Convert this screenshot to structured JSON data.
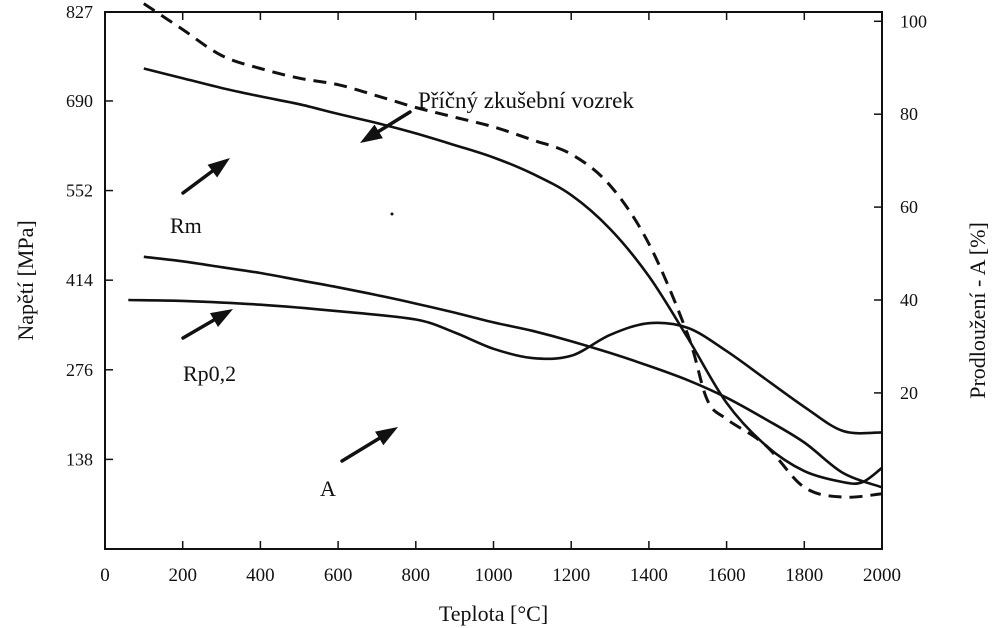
{
  "chart_data": {
    "type": "line",
    "xlabel": "Teplota [°C]",
    "ylabel": "Napětí [MPa]",
    "y2label": "Prodloužení - A [%]",
    "xlim": [
      0,
      2000
    ],
    "ylim": [
      0,
      827
    ],
    "y2lim": [
      -13.6,
      102
    ],
    "x_ticks": [
      0,
      200,
      400,
      600,
      800,
      1000,
      1200,
      1400,
      1600,
      1800,
      2000
    ],
    "y_ticks": [
      138,
      276,
      414,
      552,
      690,
      827
    ],
    "y2_ticks": [
      20,
      40,
      60,
      80,
      100
    ],
    "grid": false,
    "series": [
      {
        "name": "Příčný zkušební vozrek",
        "axis": "left",
        "style": "dashed",
        "x": [
          100,
          200,
          300,
          400,
          500,
          600,
          700,
          800,
          900,
          1000,
          1100,
          1200,
          1300,
          1400,
          1500,
          1550,
          1600,
          1700,
          1800,
          1900,
          2000
        ],
        "y": [
          840,
          800,
          760,
          740,
          725,
          715,
          698,
          680,
          665,
          650,
          630,
          608,
          560,
          470,
          330,
          230,
          200,
          160,
          95,
          80,
          85
        ]
      },
      {
        "name": "Rm",
        "axis": "left",
        "style": "solid",
        "x": [
          100,
          200,
          300,
          400,
          500,
          600,
          700,
          800,
          900,
          1000,
          1100,
          1200,
          1300,
          1400,
          1500,
          1600,
          1700,
          1800,
          1900,
          1950,
          2000
        ],
        "y": [
          740,
          725,
          710,
          697,
          685,
          670,
          656,
          640,
          622,
          603,
          578,
          545,
          493,
          420,
          325,
          225,
          160,
          120,
          103,
          103,
          125
        ]
      },
      {
        "name": "Rp0,2",
        "axis": "left",
        "style": "solid",
        "x": [
          100,
          200,
          300,
          400,
          500,
          600,
          700,
          800,
          900,
          1000,
          1100,
          1200,
          1300,
          1400,
          1500,
          1600,
          1700,
          1800,
          1900,
          2000
        ],
        "y": [
          450,
          443,
          434,
          425,
          414,
          403,
          391,
          378,
          364,
          349,
          336,
          320,
          302,
          282,
          260,
          233,
          200,
          164,
          117,
          95
        ]
      },
      {
        "name": "A",
        "axis": "right",
        "style": "solid",
        "x": [
          60,
          200,
          400,
          600,
          800,
          900,
          1000,
          1100,
          1200,
          1300,
          1400,
          1500,
          1600,
          1700,
          1800,
          1900,
          2000
        ],
        "y": [
          40,
          39.8,
          39,
          37.6,
          35.8,
          33,
          29.5,
          27.5,
          28,
          32.5,
          35,
          34,
          29,
          23,
          17,
          11.8,
          11.5
        ]
      }
    ],
    "labels": {
      "transverse": "Příčný zkušební vozrek",
      "rm": "Rm",
      "rp": "Rp0,2",
      "a": "A"
    },
    "colors": {
      "line": "#111111",
      "background": "#ffffff"
    }
  }
}
